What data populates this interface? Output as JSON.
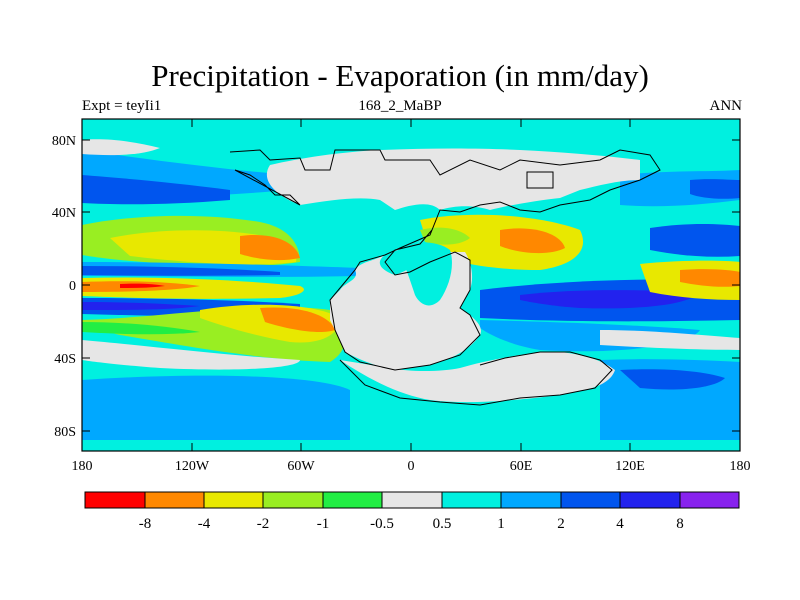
{
  "map": {
    "title": "Precipitation - Evaporation (in mm/day)",
    "subtitle_left": "Expt = teyIi1",
    "subtitle_center": "168_2_MaBP",
    "subtitle_right": "ANN",
    "lat_ticks": [
      "80N",
      "40N",
      "0",
      "40S",
      "80S"
    ],
    "lon_ticks": [
      "180",
      "120W",
      "60W",
      "0",
      "60E",
      "120E",
      "180"
    ]
  },
  "colorbar": {
    "colors": [
      "#ff0000",
      "#ff8800",
      "#e8e800",
      "#99ee22",
      "#22ee44",
      "#e6e6e6",
      "#00f0e0",
      "#00a8ff",
      "#0055ee",
      "#2222ee",
      "#8822ee"
    ],
    "labels": [
      "-8",
      "-4",
      "-2",
      "-1",
      "-0.5",
      "0.5",
      "1",
      "2",
      "4",
      "8"
    ]
  }
}
